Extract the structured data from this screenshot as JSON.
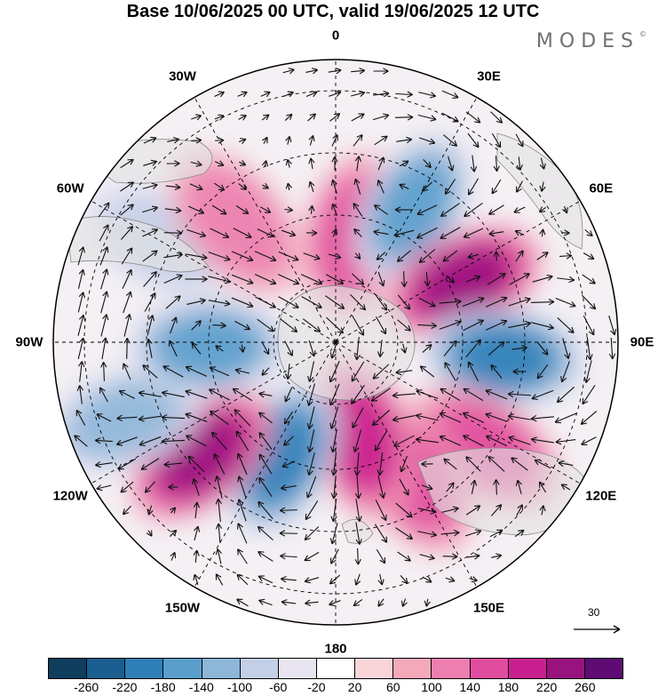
{
  "title": "Base 10/06/2025 00 UTC, valid 19/06/2025 12 UTC",
  "brand": "MODES",
  "brand_mark": "©",
  "longitude_labels": [
    "0",
    "30E",
    "60E",
    "90E",
    "120E",
    "150E",
    "180",
    "150W",
    "120W",
    "90W",
    "60W",
    "30W"
  ],
  "reference_vector": {
    "label": "30"
  },
  "colorbar": {
    "colors": [
      "#0f3d5e",
      "#1a5f8f",
      "#2f80b8",
      "#5a9fcc",
      "#8db6d9",
      "#c3cfe6",
      "#e8e5f1",
      "#ffffff",
      "#f9d5da",
      "#f3a9ba",
      "#ec7fb0",
      "#e04d9f",
      "#c8208e",
      "#99137f",
      "#5e0b74"
    ],
    "ticks": [
      "-260",
      "-220",
      "-180",
      "-140",
      "-100",
      "-60",
      "-20",
      "20",
      "60",
      "100",
      "140",
      "180",
      "220",
      "260"
    ]
  },
  "anomalies": [
    {
      "lon": 10,
      "r": 0.38,
      "value": 120
    },
    {
      "lon": 30,
      "r": 0.55,
      "value": -150
    },
    {
      "lon": 65,
      "r": 0.5,
      "value": 240
    },
    {
      "lon": 95,
      "r": 0.6,
      "value": -220
    },
    {
      "lon": 125,
      "r": 0.65,
      "value": 120
    },
    {
      "lon": 150,
      "r": 0.55,
      "value": 110
    },
    {
      "lon": 165,
      "r": 0.35,
      "value": 140
    },
    {
      "lon": -155,
      "r": 0.45,
      "value": -210
    },
    {
      "lon": -130,
      "r": 0.62,
      "value": 210
    },
    {
      "lon": -110,
      "r": 0.8,
      "value": -100
    },
    {
      "lon": -92,
      "r": 0.45,
      "value": -140
    },
    {
      "lon": -60,
      "r": 0.72,
      "value": -60
    },
    {
      "lon": -40,
      "r": 0.55,
      "value": 60
    }
  ]
}
